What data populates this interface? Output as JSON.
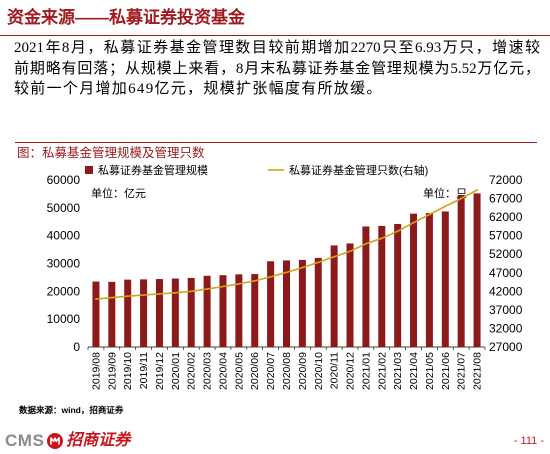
{
  "slide": {
    "title": "资金来源——私募证券投资基金",
    "paragraph_lines": [
      "2021年8月，私募证券基金管理数目较前期增加2270只至6.93万只，增速较",
      "前期略有回落；从规模上来看，8月末私募证券基金管理规模为5.52万亿元，",
      "较前一个月增加649亿元，规模扩张幅度有所放缓。"
    ],
    "source": "数据来源：wind，招商证券",
    "page_number": "- 111 -"
  },
  "footer": {
    "logo_text": "CMS",
    "brand": "招商证券",
    "emblem_icon": "cms-emblem-icon"
  },
  "colors": {
    "title": "#9e1c20",
    "caption": "#9e1c20",
    "bar": "#8c1a1a",
    "line": "#d4a21c",
    "brand": "#c8161d",
    "page_number": "#c8161d",
    "logo_gray": "#8a8a8a"
  },
  "chart_data": {
    "type": "bar",
    "title": "图：私募基金管理规模及管理只数",
    "left_unit_label": "单位：亿元",
    "right_unit_label": "单位：只",
    "categories": [
      "2019/08",
      "2019/09",
      "2019/10",
      "2019/11",
      "2019/12",
      "2020/01",
      "2020/02",
      "2020/03",
      "2020/04",
      "2020/05",
      "2020/06",
      "2020/07",
      "2020/08",
      "2020/09",
      "2020/10",
      "2020/11",
      "2020/12",
      "2021/01",
      "2021/02",
      "2021/03",
      "2021/04",
      "2021/05",
      "2021/06",
      "2021/07",
      "2021/08"
    ],
    "series": [
      {
        "name": "私募证券基金管理规模",
        "type": "bar",
        "axis": "left",
        "values": [
          23500,
          23400,
          24200,
          24300,
          24400,
          24600,
          24800,
          25600,
          25800,
          26100,
          26200,
          30800,
          31100,
          31300,
          32000,
          36500,
          37200,
          43300,
          43500,
          44200,
          47900,
          48100,
          48700,
          54600,
          55200
        ]
      },
      {
        "name": "私募证券基金管理只数(右轴)",
        "type": "line",
        "axis": "right",
        "values": [
          39900,
          40300,
          40700,
          41000,
          41300,
          41600,
          42000,
          42600,
          43300,
          44000,
          44800,
          45900,
          47100,
          48400,
          49800,
          51300,
          52800,
          54800,
          56300,
          58200,
          60500,
          62700,
          64900,
          67000,
          69300
        ]
      }
    ],
    "ylim": [
      0,
      60000
    ],
    "yticks": [
      0,
      10000,
      20000,
      30000,
      40000,
      50000,
      60000
    ],
    "y2lim": [
      27000,
      72000
    ],
    "y2ticks": [
      27000,
      32000,
      37000,
      42000,
      47000,
      52000,
      57000,
      62000,
      67000,
      72000
    ],
    "grid": false,
    "legend": "top"
  }
}
